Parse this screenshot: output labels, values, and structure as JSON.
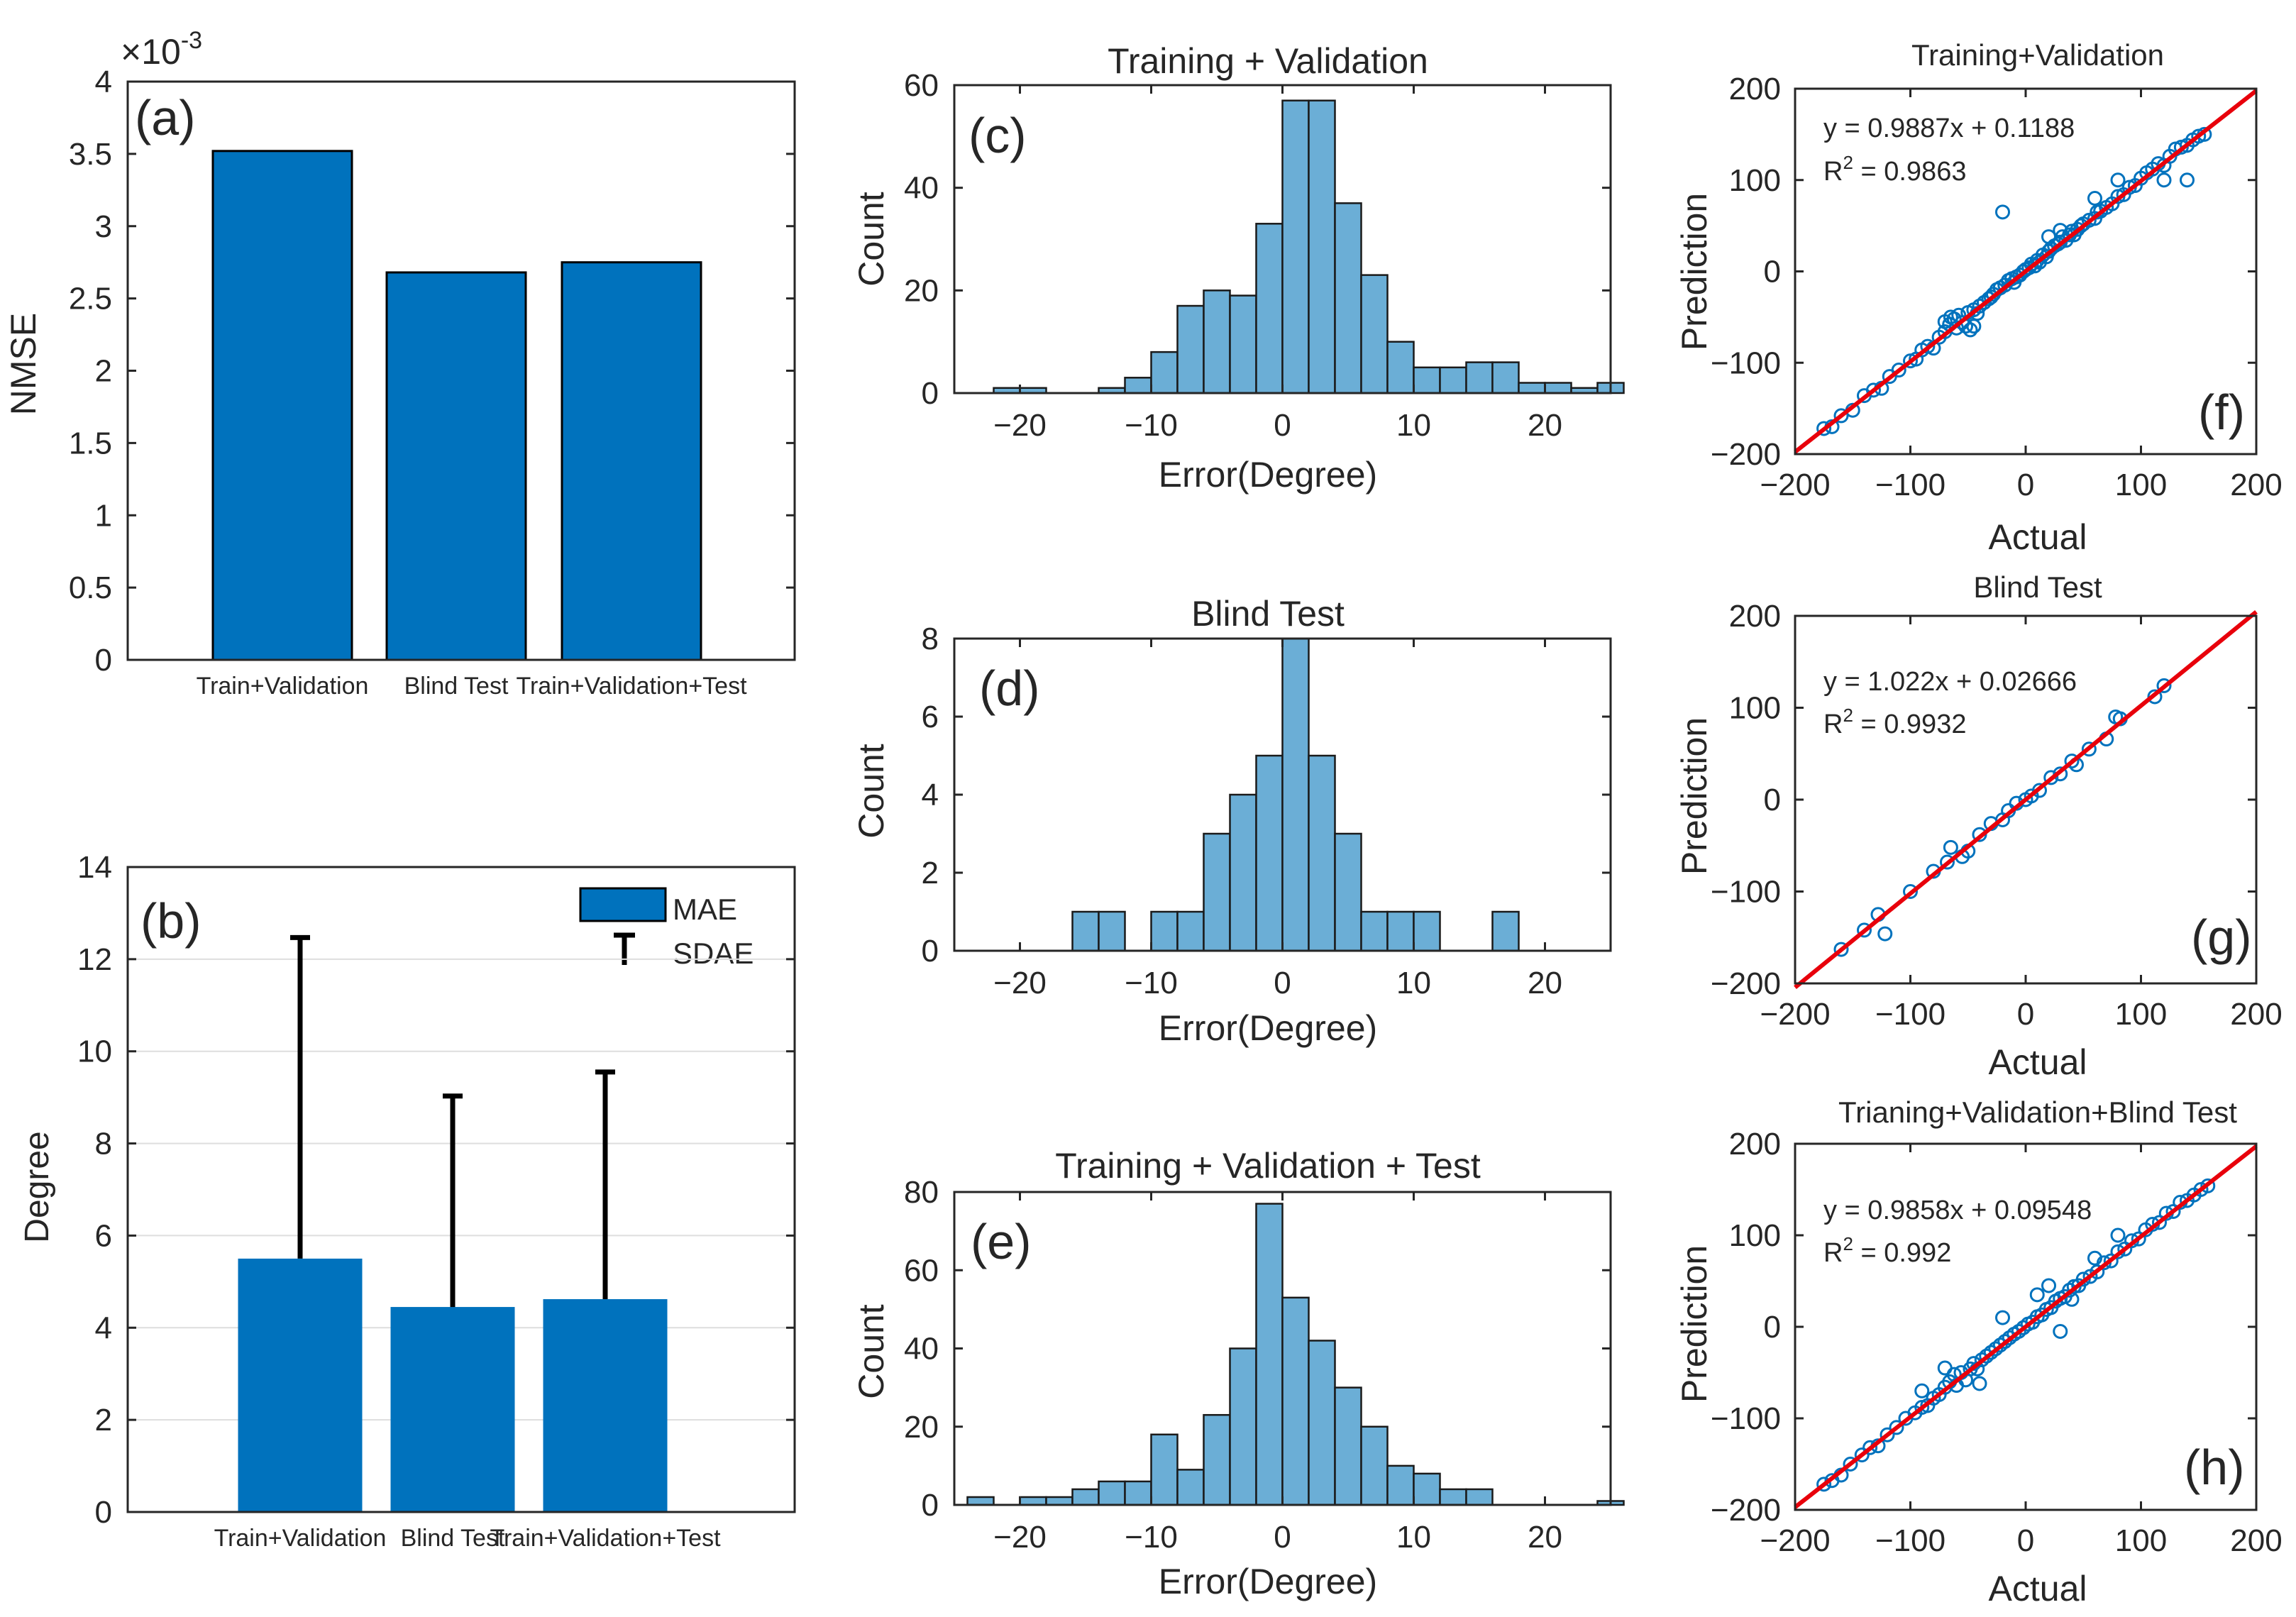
{
  "chart_data": [
    {
      "id": "a",
      "type": "bar",
      "panel_label": "(a)",
      "categories": [
        "Train+Validation",
        "Blind Test",
        "Train+Validation+Test"
      ],
      "values": [
        3.52,
        2.68,
        2.75
      ],
      "exponent_label": "×10",
      "exponent_power": "-3",
      "ylabel": "NMSE",
      "ylim": [
        0,
        4
      ],
      "yticks": [
        "0",
        "0.5",
        "1",
        "1.5",
        "2",
        "2.5",
        "3",
        "3.5",
        "4"
      ],
      "bar_color": "#0072bd"
    },
    {
      "id": "b",
      "type": "bar",
      "panel_label": "(b)",
      "categories": [
        "Train+Validation",
        "Blind Test",
        "Train+Validation+Test"
      ],
      "values": [
        5.5,
        4.45,
        4.62
      ],
      "errors": [
        6.97,
        4.58,
        4.93
      ],
      "ylabel": "Degree",
      "ylim": [
        0,
        14
      ],
      "yticks": [
        "0",
        "2",
        "4",
        "6",
        "8",
        "10",
        "12",
        "14"
      ],
      "legend": {
        "bar": "MAE",
        "error": "SDAE"
      },
      "grid": true,
      "bar_color": "#0072bd"
    },
    {
      "id": "c",
      "type": "bar",
      "panel_label": "(c)",
      "title": "Training + Validation",
      "xlabel": "Error(Degree)",
      "ylabel": "Count",
      "xlim": [
        -25,
        25
      ],
      "ylim": [
        0,
        60
      ],
      "bin_width": 2,
      "bin_start": -24,
      "values": [
        0,
        1,
        1,
        0,
        0,
        1,
        3,
        8,
        17,
        20,
        19,
        33,
        57,
        57,
        37,
        23,
        10,
        5,
        5,
        6,
        6,
        2,
        2,
        1,
        2
      ],
      "xticks": [
        "−20",
        "−10",
        "0",
        "10",
        "20"
      ],
      "yticks": [
        "0",
        "20",
        "40",
        "60"
      ],
      "bar_color": "#6baed6"
    },
    {
      "id": "d",
      "type": "bar",
      "panel_label": "(d)",
      "title": "Blind Test",
      "xlabel": "Error(Degree)",
      "ylabel": "Count",
      "xlim": [
        -25,
        25
      ],
      "ylim": [
        0,
        8
      ],
      "bin_width": 2,
      "bin_start": -24,
      "values": [
        0,
        0,
        0,
        0,
        1,
        1,
        0,
        1,
        1,
        3,
        4,
        5,
        8,
        5,
        3,
        1,
        1,
        1,
        0,
        0,
        1,
        0,
        0,
        0,
        0
      ],
      "xticks": [
        "−20",
        "−10",
        "0",
        "10",
        "20"
      ],
      "yticks": [
        "0",
        "2",
        "4",
        "6",
        "8"
      ],
      "bar_color": "#6baed6"
    },
    {
      "id": "e",
      "type": "bar",
      "panel_label": "(e)",
      "title": "Training + Validation + Test",
      "xlabel": "Error(Degree)",
      "ylabel": "Count",
      "xlim": [
        -25,
        25
      ],
      "ylim": [
        0,
        80
      ],
      "bin_width": 2,
      "bin_start": -24,
      "values": [
        2,
        0,
        2,
        2,
        4,
        6,
        6,
        18,
        9,
        23,
        40,
        77,
        53,
        42,
        30,
        20,
        10,
        8,
        4,
        4,
        0,
        0,
        0,
        0,
        1
      ],
      "xticks": [
        "−20",
        "−10",
        "0",
        "10",
        "20"
      ],
      "yticks": [
        "0",
        "20",
        "40",
        "60",
        "80"
      ],
      "bar_color": "#6baed6"
    },
    {
      "id": "f",
      "type": "scatter",
      "panel_label": "(f)",
      "title": "Training+Validation",
      "xlabel": "Actual",
      "ylabel": "Prediction",
      "xlim": [
        -200,
        200
      ],
      "ylim": [
        -200,
        200
      ],
      "xticks": [
        "−200",
        "−100",
        "0",
        "100",
        "200"
      ],
      "yticks": [
        "−200",
        "−100",
        "0",
        "100",
        "200"
      ],
      "equation": "y = 0.9887x + 0.1188",
      "r2_label": "R",
      "r2_sup": "2",
      "r2_value": " = 0.9863",
      "fit": {
        "slope": 0.9887,
        "intercept": 0.1188
      },
      "points": [
        [
          -175,
          -172
        ],
        [
          -168,
          -170
        ],
        [
          -160,
          -158
        ],
        [
          -150,
          -152
        ],
        [
          -140,
          -136
        ],
        [
          -132,
          -130
        ],
        [
          -125,
          -128
        ],
        [
          -118,
          -115
        ],
        [
          -110,
          -108
        ],
        [
          -100,
          -98
        ],
        [
          -95,
          -96
        ],
        [
          -90,
          -86
        ],
        [
          -85,
          -82
        ],
        [
          -80,
          -84
        ],
        [
          -75,
          -72
        ],
        [
          -70,
          -66
        ],
        [
          -66,
          -58
        ],
        [
          -62,
          -52
        ],
        [
          -60,
          -62
        ],
        [
          -58,
          -48
        ],
        [
          -55,
          -56
        ],
        [
          -52,
          -60
        ],
        [
          -50,
          -45
        ],
        [
          -48,
          -64
        ],
        [
          -45,
          -42
        ],
        [
          -42,
          -46
        ],
        [
          -40,
          -38
        ],
        [
          -36,
          -34
        ],
        [
          -32,
          -30
        ],
        [
          -28,
          -25
        ],
        [
          -25,
          -20
        ],
        [
          -22,
          -18
        ],
        [
          -18,
          -15
        ],
        [
          -15,
          -10
        ],
        [
          -12,
          -8
        ],
        [
          -10,
          -12
        ],
        [
          -8,
          -6
        ],
        [
          -5,
          -4
        ],
        [
          -2,
          0
        ],
        [
          0,
          2
        ],
        [
          3,
          4
        ],
        [
          5,
          8
        ],
        [
          8,
          6
        ],
        [
          10,
          12
        ],
        [
          12,
          10
        ],
        [
          15,
          18
        ],
        [
          18,
          16
        ],
        [
          20,
          22
        ],
        [
          22,
          25
        ],
        [
          25,
          28
        ],
        [
          28,
          30
        ],
        [
          30,
          32
        ],
        [
          32,
          38
        ],
        [
          35,
          34
        ],
        [
          38,
          40
        ],
        [
          40,
          44
        ],
        [
          42,
          40
        ],
        [
          45,
          46
        ],
        [
          48,
          50
        ],
        [
          50,
          52
        ],
        [
          55,
          56
        ],
        [
          60,
          58
        ],
        [
          62,
          65
        ],
        [
          65,
          66
        ],
        [
          70,
          70
        ],
        [
          75,
          74
        ],
        [
          80,
          82
        ],
        [
          85,
          84
        ],
        [
          90,
          92
        ],
        [
          95,
          94
        ],
        [
          100,
          102
        ],
        [
          105,
          108
        ],
        [
          110,
          112
        ],
        [
          115,
          118
        ],
        [
          120,
          116
        ],
        [
          125,
          126
        ],
        [
          130,
          134
        ],
        [
          135,
          136
        ],
        [
          140,
          138
        ],
        [
          145,
          144
        ],
        [
          150,
          148
        ],
        [
          155,
          150
        ],
        [
          -20,
          65
        ],
        [
          -30,
          -28
        ],
        [
          60,
          80
        ],
        [
          80,
          100
        ],
        [
          120,
          100
        ],
        [
          140,
          100
        ],
        [
          -45,
          -60
        ],
        [
          -65,
          -50
        ],
        [
          -70,
          -55
        ],
        [
          20,
          38
        ],
        [
          30,
          45
        ]
      ]
    },
    {
      "id": "g",
      "type": "scatter",
      "panel_label": "(g)",
      "title": "Blind Test",
      "xlabel": "Actual",
      "ylabel": "Prediction",
      "xlim": [
        -200,
        200
      ],
      "ylim": [
        -200,
        200
      ],
      "xticks": [
        "−200",
        "−100",
        "0",
        "100",
        "200"
      ],
      "yticks": [
        "−200",
        "−100",
        "0",
        "100",
        "200"
      ],
      "equation": "y = 1.022x + 0.02666",
      "r2_label": "R",
      "r2_sup": "2",
      "r2_value": " = 0.9932",
      "fit": {
        "slope": 1.022,
        "intercept": 0.02666
      },
      "points": [
        [
          -160,
          -163
        ],
        [
          -140,
          -142
        ],
        [
          -128,
          -125
        ],
        [
          -122,
          -146
        ],
        [
          -100,
          -100
        ],
        [
          -80,
          -78
        ],
        [
          -68,
          -68
        ],
        [
          -65,
          -52
        ],
        [
          -55,
          -62
        ],
        [
          -50,
          -56
        ],
        [
          -40,
          -38
        ],
        [
          -30,
          -26
        ],
        [
          -20,
          -22
        ],
        [
          -15,
          -12
        ],
        [
          -8,
          -4
        ],
        [
          0,
          0
        ],
        [
          5,
          4
        ],
        [
          12,
          10
        ],
        [
          22,
          24
        ],
        [
          30,
          28
        ],
        [
          40,
          42
        ],
        [
          44,
          38
        ],
        [
          55,
          55
        ],
        [
          70,
          66
        ],
        [
          78,
          90
        ],
        [
          82,
          88
        ],
        [
          112,
          112
        ],
        [
          120,
          124
        ]
      ]
    },
    {
      "id": "h",
      "type": "scatter",
      "panel_label": "(h)",
      "title": "Trianing+Validation+Blind Test",
      "xlabel": "Actual",
      "ylabel": "Prediction",
      "xlim": [
        -200,
        200
      ],
      "ylim": [
        -200,
        200
      ],
      "xticks": [
        "−200",
        "−100",
        "0",
        "100",
        "200"
      ],
      "yticks": [
        "−200",
        "−100",
        "0",
        "100",
        "200"
      ],
      "equation": "y = 0.9858x + 0.09548",
      "r2_label": "R",
      "r2_sup": "2",
      "r2_value": " = 0.992",
      "fit": {
        "slope": 0.9858,
        "intercept": 0.09548
      },
      "points": [
        [
          -175,
          -172
        ],
        [
          -168,
          -168
        ],
        [
          -160,
          -162
        ],
        [
          -152,
          -150
        ],
        [
          -142,
          -140
        ],
        [
          -135,
          -132
        ],
        [
          -128,
          -130
        ],
        [
          -120,
          -118
        ],
        [
          -112,
          -110
        ],
        [
          -104,
          -100
        ],
        [
          -96,
          -94
        ],
        [
          -90,
          -88
        ],
        [
          -85,
          -86
        ],
        [
          -80,
          -78
        ],
        [
          -75,
          -74
        ],
        [
          -70,
          -66
        ],
        [
          -66,
          -60
        ],
        [
          -62,
          -52
        ],
        [
          -60,
          -64
        ],
        [
          -56,
          -50
        ],
        [
          -52,
          -58
        ],
        [
          -48,
          -46
        ],
        [
          -45,
          -40
        ],
        [
          -42,
          -46
        ],
        [
          -38,
          -36
        ],
        [
          -34,
          -32
        ],
        [
          -30,
          -28
        ],
        [
          -26,
          -24
        ],
        [
          -22,
          -20
        ],
        [
          -18,
          -16
        ],
        [
          -14,
          -12
        ],
        [
          -10,
          -8
        ],
        [
          -6,
          -5
        ],
        [
          -2,
          -1
        ],
        [
          2,
          3
        ],
        [
          6,
          5
        ],
        [
          10,
          11
        ],
        [
          14,
          13
        ],
        [
          18,
          19
        ],
        [
          22,
          21
        ],
        [
          26,
          28
        ],
        [
          30,
          31
        ],
        [
          34,
          33
        ],
        [
          38,
          40
        ],
        [
          42,
          44
        ],
        [
          46,
          45
        ],
        [
          50,
          52
        ],
        [
          56,
          55
        ],
        [
          62,
          60
        ],
        [
          68,
          70
        ],
        [
          74,
          72
        ],
        [
          80,
          82
        ],
        [
          86,
          85
        ],
        [
          92,
          94
        ],
        [
          98,
          96
        ],
        [
          104,
          106
        ],
        [
          110,
          112
        ],
        [
          116,
          114
        ],
        [
          122,
          124
        ],
        [
          128,
          126
        ],
        [
          134,
          136
        ],
        [
          140,
          138
        ],
        [
          146,
          144
        ],
        [
          152,
          150
        ],
        [
          158,
          154
        ],
        [
          -40,
          -62
        ],
        [
          20,
          45
        ],
        [
          30,
          -5
        ],
        [
          40,
          30
        ],
        [
          60,
          75
        ],
        [
          80,
          100
        ],
        [
          -90,
          -70
        ],
        [
          -70,
          -45
        ],
        [
          -20,
          10
        ],
        [
          10,
          35
        ]
      ]
    }
  ]
}
